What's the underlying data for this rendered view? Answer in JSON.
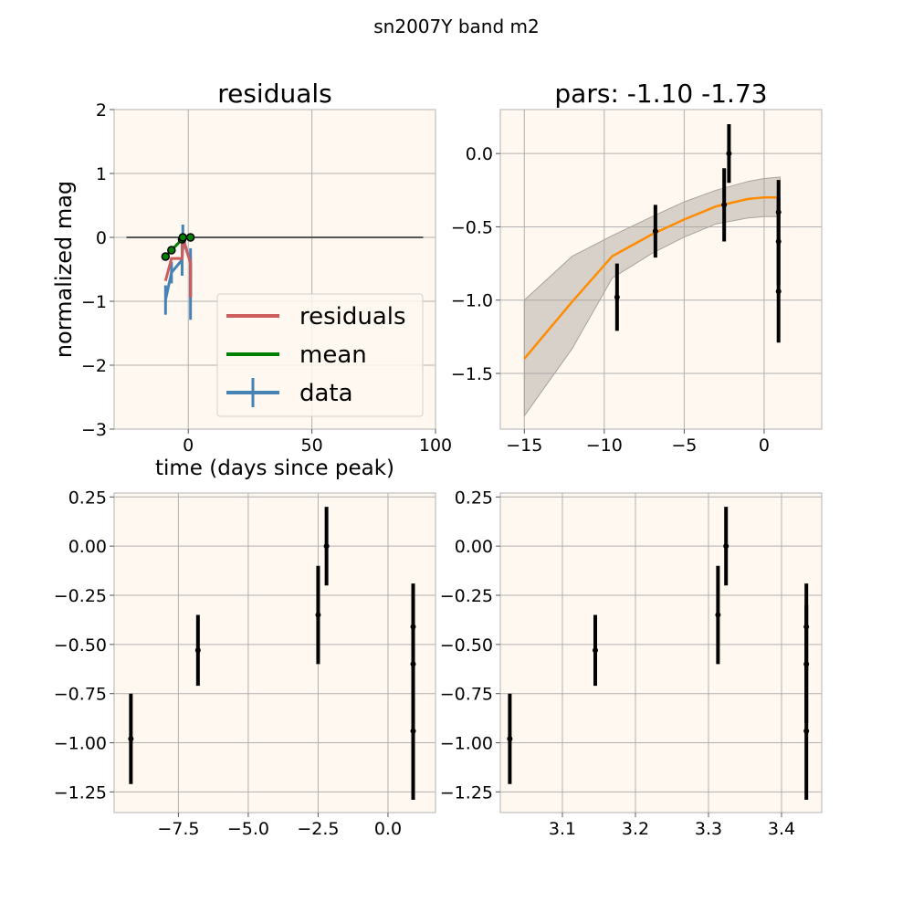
{
  "figure": {
    "suptitle": "sn2007Y band m2"
  },
  "colors": {
    "panel_bg": "#fff8f0",
    "grid": "#b0b0b0",
    "spine": "#bfbfbf",
    "residuals": "#cd5c5c",
    "mean": "#008000",
    "data": "#4682b4",
    "model": "#ff8c00",
    "band": "#a9a29b",
    "zero_line": "#555555",
    "points": "#000000"
  },
  "chart_data": [
    {
      "id": "residuals",
      "type": "line",
      "title": "residuals",
      "xlabel": "time (days since peak)",
      "ylabel": "normalized mag",
      "xlim": [
        -30,
        100
      ],
      "ylim": [
        -3,
        2
      ],
      "xticks": [
        0,
        50,
        100
      ],
      "yticks": [
        -3,
        -2,
        -1,
        0,
        1,
        2
      ],
      "xticklabels": [
        "0",
        "50",
        "100"
      ],
      "yticklabels": [
        "−3",
        "−2",
        "−1",
        "0",
        "1",
        "2"
      ],
      "grid": true,
      "legend": {
        "placement": "lower-right",
        "entries": [
          "residuals",
          "mean",
          "data"
        ]
      },
      "zero_line": {
        "x": [
          -25,
          95
        ],
        "y": 0
      },
      "series": [
        {
          "name": "residuals",
          "style": "line",
          "x": [
            -9.2,
            -6.8,
            -2.5,
            -2.2,
            0.9,
            0.9,
            0.9
          ],
          "y": [
            -0.68,
            -0.33,
            -0.33,
            -0.02,
            -0.4,
            -0.6,
            -0.94
          ]
        },
        {
          "name": "mean",
          "style": "line-markers",
          "x": [
            -9.2,
            -6.8,
            -2.5,
            -2.2,
            0.9
          ],
          "y": [
            -0.3,
            -0.2,
            -0.03,
            0.0,
            0.0
          ]
        },
        {
          "name": "data",
          "style": "errorbar",
          "x": [
            -9.2,
            -6.8,
            -2.5,
            -2.2,
            0.9,
            0.9,
            0.9
          ],
          "y": [
            -0.98,
            -0.55,
            -0.35,
            0.0,
            -0.4,
            -0.6,
            -0.94
          ],
          "yerr": [
            0.23,
            0.17,
            0.25,
            0.2,
            0.23,
            0.3,
            0.35
          ]
        }
      ]
    },
    {
      "id": "fit",
      "type": "line",
      "title": "pars: -1.10 -1.73",
      "xlim": [
        -16.5,
        3.6
      ],
      "ylim": [
        -1.88,
        0.3
      ],
      "xticks": [
        -15,
        -10,
        -5,
        0
      ],
      "yticks": [
        -1.5,
        -1.0,
        -0.5,
        0.0
      ],
      "xticklabels": [
        "−15",
        "−10",
        "−5",
        "0"
      ],
      "yticklabels": [
        "−1.5",
        "−1.0",
        "−0.5",
        "0.0"
      ],
      "grid": true,
      "model": {
        "x": [
          -15,
          -12,
          -9.5,
          -7,
          -5,
          -3,
          -1,
          0,
          1
        ],
        "y": [
          -1.4,
          -1.01,
          -0.7,
          -0.55,
          -0.45,
          -0.36,
          -0.31,
          -0.3,
          -0.3
        ],
        "upper": [
          -1.0,
          -0.7,
          -0.56,
          -0.43,
          -0.33,
          -0.25,
          -0.19,
          -0.17,
          -0.16
        ],
        "lower": [
          -1.79,
          -1.33,
          -0.85,
          -0.68,
          -0.57,
          -0.48,
          -0.44,
          -0.43,
          -0.43
        ]
      },
      "points": {
        "x": [
          -9.2,
          -6.8,
          -2.5,
          -2.2,
          0.9,
          0.9,
          0.9
        ],
        "y": [
          -0.98,
          -0.53,
          -0.35,
          0.0,
          -0.4,
          -0.6,
          -0.94
        ],
        "yerr": [
          0.23,
          0.18,
          0.25,
          0.2,
          0.22,
          0.3,
          0.35
        ]
      }
    },
    {
      "id": "time",
      "type": "scatter",
      "xlim": [
        -9.8,
        1.7
      ],
      "ylim": [
        -1.355,
        0.27
      ],
      "xticks": [
        -7.5,
        -5.0,
        -2.5,
        0.0
      ],
      "yticks": [
        -1.25,
        -1.0,
        -0.75,
        -0.5,
        -0.25,
        0.0,
        0.25
      ],
      "xticklabels": [
        "−7.5",
        "−5.0",
        "−2.5",
        "0.0"
      ],
      "yticklabels": [
        "−1.25",
        "−1.00",
        "−0.75",
        "−0.50",
        "−0.25",
        "0.00",
        "0.25"
      ],
      "grid": true,
      "points": {
        "x": [
          -9.2,
          -6.8,
          -2.5,
          -2.2,
          0.9,
          0.9,
          0.9
        ],
        "y": [
          -0.98,
          -0.53,
          -0.35,
          0.0,
          -0.41,
          -0.6,
          -0.94
        ],
        "yerr": [
          0.23,
          0.18,
          0.25,
          0.2,
          0.22,
          0.3,
          0.35
        ]
      }
    },
    {
      "id": "logtime",
      "type": "scatter",
      "xlim": [
        3.015,
        3.455
      ],
      "ylim": [
        -1.355,
        0.27
      ],
      "xticks": [
        3.1,
        3.2,
        3.3,
        3.4
      ],
      "yticks": [
        -1.25,
        -1.0,
        -0.75,
        -0.5,
        -0.25,
        0.0,
        0.25
      ],
      "xticklabels": [
        "3.1",
        "3.2",
        "3.3",
        "3.4"
      ],
      "yticklabels": [
        "−1.25",
        "−1.00",
        "−0.75",
        "−0.50",
        "−0.25",
        "0.00",
        "0.25"
      ],
      "grid": true,
      "points": {
        "x": [
          3.028,
          3.145,
          3.313,
          3.324,
          3.434,
          3.434,
          3.434
        ],
        "y": [
          -0.98,
          -0.53,
          -0.35,
          0.0,
          -0.41,
          -0.6,
          -0.94
        ],
        "yerr": [
          0.23,
          0.18,
          0.25,
          0.2,
          0.22,
          0.3,
          0.35
        ]
      }
    }
  ]
}
